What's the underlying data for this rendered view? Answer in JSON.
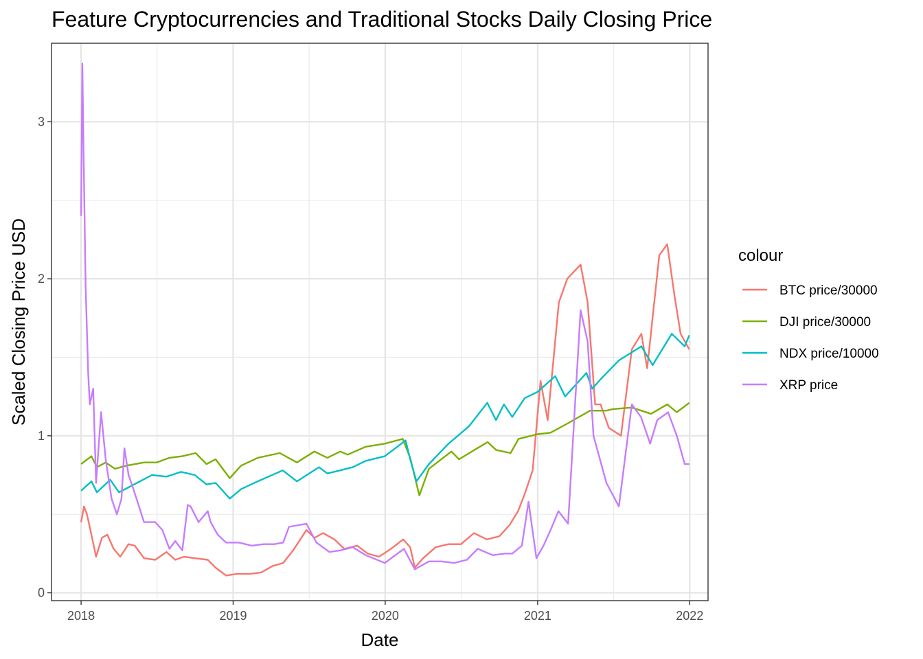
{
  "chart_data": {
    "type": "line",
    "title": "Feature Cryptocurrencies and Traditional Stocks Daily Closing Price",
    "xlabel": "Date",
    "ylabel": "Scaled Closing Price USD",
    "xlim": [
      "2017-10-22",
      "2022-02-14"
    ],
    "ylim": [
      -0.05,
      3.5
    ],
    "x_ticks": [
      "2018-01-01",
      "2019-01-01",
      "2020-01-01",
      "2021-01-01",
      "2022-01-01"
    ],
    "x_tick_labels": [
      "2018",
      "2019",
      "2020",
      "2021",
      "2022"
    ],
    "y_ticks": [
      0,
      1,
      2,
      3
    ],
    "y_tick_labels": [
      "0",
      "1",
      "2",
      "3"
    ],
    "grid": true,
    "legend": {
      "title": "colour",
      "position": "right"
    },
    "series": [
      {
        "name": "BTC price/30000",
        "color": "#F8766D",
        "x": [
          "2018-01-01",
          "2018-01-08",
          "2018-01-15",
          "2018-01-25",
          "2018-02-06",
          "2018-02-20",
          "2018-03-05",
          "2018-03-20",
          "2018-04-05",
          "2018-04-25",
          "2018-05-10",
          "2018-06-01",
          "2018-06-28",
          "2018-07-25",
          "2018-08-15",
          "2018-09-05",
          "2018-10-01",
          "2018-11-01",
          "2018-11-20",
          "2018-12-15",
          "2019-01-10",
          "2019-02-10",
          "2019-03-10",
          "2019-04-05",
          "2019-05-01",
          "2019-05-25",
          "2019-06-26",
          "2019-07-15",
          "2019-08-05",
          "2019-09-01",
          "2019-09-25",
          "2019-10-26",
          "2019-11-20",
          "2019-12-17",
          "2020-01-15",
          "2020-02-13",
          "2020-03-01",
          "2020-03-12",
          "2020-04-01",
          "2020-05-01",
          "2020-06-01",
          "2020-07-01",
          "2020-08-01",
          "2020-09-01",
          "2020-10-01",
          "2020-10-25",
          "2020-11-15",
          "2020-12-01",
          "2020-12-20",
          "2021-01-08",
          "2021-01-25",
          "2021-02-21",
          "2021-03-13",
          "2021-04-14",
          "2021-05-01",
          "2021-05-19",
          "2021-06-01",
          "2021-06-21",
          "2021-07-20",
          "2021-08-15",
          "2021-09-07",
          "2021-09-21",
          "2021-10-20",
          "2021-11-08",
          "2021-11-25",
          "2021-12-10",
          "2021-12-31"
        ],
        "y": [
          0.45,
          0.55,
          0.5,
          0.38,
          0.23,
          0.35,
          0.37,
          0.28,
          0.23,
          0.31,
          0.3,
          0.22,
          0.21,
          0.26,
          0.21,
          0.23,
          0.22,
          0.21,
          0.16,
          0.11,
          0.12,
          0.12,
          0.13,
          0.17,
          0.19,
          0.27,
          0.4,
          0.35,
          0.38,
          0.34,
          0.28,
          0.3,
          0.25,
          0.23,
          0.28,
          0.34,
          0.29,
          0.16,
          0.22,
          0.29,
          0.31,
          0.31,
          0.38,
          0.34,
          0.36,
          0.43,
          0.52,
          0.63,
          0.78,
          1.35,
          1.1,
          1.85,
          2.0,
          2.09,
          1.85,
          1.2,
          1.2,
          1.05,
          1.0,
          1.55,
          1.65,
          1.43,
          2.15,
          2.22,
          1.9,
          1.65,
          1.55
        ]
      },
      {
        "name": "DJI price/30000",
        "color": "#7CAE00",
        "x": [
          "2018-01-01",
          "2018-01-26",
          "2018-02-08",
          "2018-03-01",
          "2018-03-23",
          "2018-04-20",
          "2018-06-01",
          "2018-07-01",
          "2018-08-01",
          "2018-09-01",
          "2018-10-03",
          "2018-10-29",
          "2018-11-20",
          "2018-12-24",
          "2019-01-20",
          "2019-03-01",
          "2019-04-23",
          "2019-06-03",
          "2019-07-15",
          "2019-08-15",
          "2019-09-15",
          "2019-10-03",
          "2019-11-15",
          "2019-12-31",
          "2020-02-12",
          "2020-03-01",
          "2020-03-23",
          "2020-04-15",
          "2020-06-08",
          "2020-06-26",
          "2020-08-15",
          "2020-09-03",
          "2020-09-23",
          "2020-10-28",
          "2020-11-16",
          "2021-01-01",
          "2021-02-01",
          "2021-03-15",
          "2021-05-07",
          "2021-06-15",
          "2021-07-01",
          "2021-08-15",
          "2021-09-30",
          "2021-11-08",
          "2021-12-01",
          "2021-12-31"
        ],
        "y": [
          0.82,
          0.87,
          0.8,
          0.83,
          0.79,
          0.81,
          0.83,
          0.83,
          0.86,
          0.87,
          0.89,
          0.82,
          0.85,
          0.73,
          0.81,
          0.86,
          0.89,
          0.83,
          0.9,
          0.86,
          0.9,
          0.88,
          0.93,
          0.95,
          0.98,
          0.86,
          0.62,
          0.79,
          0.9,
          0.85,
          0.93,
          0.96,
          0.91,
          0.89,
          0.98,
          1.01,
          1.02,
          1.08,
          1.16,
          1.16,
          1.17,
          1.18,
          1.14,
          1.2,
          1.15,
          1.21
        ]
      },
      {
        "name": "NDX price/10000",
        "color": "#00BFC4",
        "x": [
          "2018-01-01",
          "2018-01-26",
          "2018-02-08",
          "2018-03-12",
          "2018-04-02",
          "2018-05-01",
          "2018-06-20",
          "2018-07-25",
          "2018-08-29",
          "2018-10-01",
          "2018-10-29",
          "2018-11-20",
          "2018-12-24",
          "2019-01-20",
          "2019-03-01",
          "2019-04-30",
          "2019-06-03",
          "2019-07-26",
          "2019-08-15",
          "2019-09-15",
          "2019-10-15",
          "2019-11-15",
          "2019-12-31",
          "2020-02-19",
          "2020-03-01",
          "2020-03-16",
          "2020-04-15",
          "2020-06-01",
          "2020-07-20",
          "2020-09-02",
          "2020-09-23",
          "2020-10-12",
          "2020-11-01",
          "2020-12-01",
          "2021-01-01",
          "2021-02-12",
          "2021-03-08",
          "2021-04-28",
          "2021-05-12",
          "2021-06-01",
          "2021-07-15",
          "2021-09-07",
          "2021-10-04",
          "2021-11-19",
          "2021-12-20",
          "2021-12-31"
        ],
        "y": [
          0.65,
          0.71,
          0.64,
          0.72,
          0.64,
          0.68,
          0.75,
          0.74,
          0.77,
          0.75,
          0.69,
          0.7,
          0.6,
          0.66,
          0.71,
          0.78,
          0.71,
          0.8,
          0.76,
          0.78,
          0.8,
          0.84,
          0.87,
          0.97,
          0.85,
          0.71,
          0.82,
          0.95,
          1.06,
          1.21,
          1.1,
          1.2,
          1.12,
          1.24,
          1.28,
          1.38,
          1.25,
          1.4,
          1.3,
          1.36,
          1.48,
          1.57,
          1.45,
          1.65,
          1.57,
          1.64
        ]
      },
      {
        "name": "XRP price",
        "color": "#C77CFF",
        "x": [
          "2018-01-01",
          "2018-01-04",
          "2018-01-07",
          "2018-01-12",
          "2018-01-18",
          "2018-01-22",
          "2018-01-30",
          "2018-02-06",
          "2018-02-18",
          "2018-03-01",
          "2018-03-15",
          "2018-03-28",
          "2018-04-08",
          "2018-04-15",
          "2018-04-25",
          "2018-05-08",
          "2018-06-01",
          "2018-06-28",
          "2018-07-15",
          "2018-08-01",
          "2018-08-15",
          "2018-09-01",
          "2018-09-14",
          "2018-09-21",
          "2018-10-10",
          "2018-11-01",
          "2018-11-08",
          "2018-11-25",
          "2018-12-15",
          "2019-01-15",
          "2019-02-15",
          "2019-03-15",
          "2019-04-10",
          "2019-05-01",
          "2019-05-15",
          "2019-06-26",
          "2019-07-20",
          "2019-08-20",
          "2019-09-15",
          "2019-10-15",
          "2019-11-15",
          "2019-12-31",
          "2020-02-15",
          "2020-03-12",
          "2020-04-15",
          "2020-05-15",
          "2020-06-15",
          "2020-07-15",
          "2020-08-10",
          "2020-09-15",
          "2020-10-15",
          "2020-11-01",
          "2020-11-24",
          "2020-12-10",
          "2020-12-29",
          "2021-01-15",
          "2021-02-01",
          "2021-02-20",
          "2021-03-15",
          "2021-04-14",
          "2021-05-01",
          "2021-05-15",
          "2021-06-15",
          "2021-07-15",
          "2021-08-15",
          "2021-09-06",
          "2021-09-28",
          "2021-10-15",
          "2021-11-10",
          "2021-12-01",
          "2021-12-20",
          "2021-12-31"
        ],
        "y": [
          2.4,
          3.37,
          2.8,
          1.95,
          1.4,
          1.2,
          1.3,
          0.7,
          1.15,
          0.85,
          0.6,
          0.5,
          0.6,
          0.92,
          0.75,
          0.65,
          0.45,
          0.45,
          0.4,
          0.28,
          0.33,
          0.27,
          0.56,
          0.55,
          0.45,
          0.52,
          0.45,
          0.37,
          0.32,
          0.32,
          0.3,
          0.31,
          0.31,
          0.32,
          0.42,
          0.44,
          0.32,
          0.26,
          0.27,
          0.29,
          0.24,
          0.19,
          0.28,
          0.15,
          0.2,
          0.2,
          0.19,
          0.21,
          0.28,
          0.24,
          0.25,
          0.25,
          0.3,
          0.58,
          0.22,
          0.3,
          0.4,
          0.52,
          0.44,
          1.8,
          1.6,
          1.0,
          0.7,
          0.55,
          1.2,
          1.12,
          0.95,
          1.1,
          1.15,
          1.0,
          0.82,
          0.82
        ]
      }
    ]
  }
}
